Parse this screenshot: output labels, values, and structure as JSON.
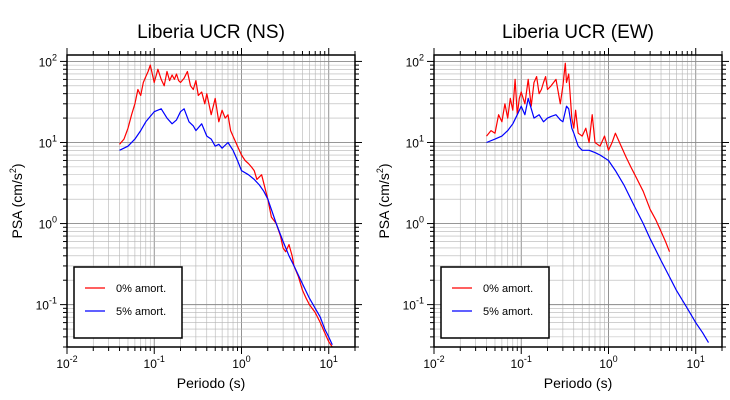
{
  "chart_data": [
    {
      "type": "line",
      "title": "Liberia UCR (NS)",
      "xlabel": "Periodo (s)",
      "ylabel": "PSA (cm/s",
      "ylabel_sup": "2",
      "ylabel_end": ")",
      "xscale": "log",
      "yscale": "log",
      "xlim": [
        0.01,
        20
      ],
      "ylim": [
        0.03,
        120
      ],
      "grid": true,
      "legend_position": "bottom-left",
      "x_ticks": [
        {
          "base": "10",
          "exp": "-2"
        },
        {
          "base": "10",
          "exp": "-1"
        },
        {
          "base": "10",
          "exp": "0"
        },
        {
          "base": "10",
          "exp": "1"
        }
      ],
      "y_ticks": [
        {
          "base": "10",
          "exp": "-1"
        },
        {
          "base": "10",
          "exp": "0"
        },
        {
          "base": "10",
          "exp": "1"
        },
        {
          "base": "10",
          "exp": "2"
        }
      ],
      "series": [
        {
          "name": "0% amort.",
          "color": "#ff0000",
          "x": [
            0.04,
            0.045,
            0.05,
            0.055,
            0.06,
            0.065,
            0.07,
            0.075,
            0.08,
            0.085,
            0.09,
            0.095,
            0.1,
            0.11,
            0.12,
            0.13,
            0.14,
            0.15,
            0.16,
            0.17,
            0.18,
            0.19,
            0.2,
            0.22,
            0.24,
            0.26,
            0.28,
            0.3,
            0.32,
            0.35,
            0.38,
            0.4,
            0.45,
            0.5,
            0.55,
            0.6,
            0.65,
            0.7,
            0.75,
            0.8,
            0.9,
            1.0,
            1.1,
            1.2,
            1.3,
            1.4,
            1.5,
            1.7,
            1.9,
            2.0,
            2.2,
            2.5,
            2.8,
            3.0,
            3.2,
            3.5,
            3.8,
            4.0,
            4.5,
            5.0,
            5.5,
            6.0,
            7.0,
            8.0,
            9.0,
            10.0,
            11.0
          ],
          "y": [
            9.5,
            11,
            15,
            22,
            30,
            45,
            38,
            55,
            65,
            75,
            90,
            70,
            55,
            80,
            60,
            50,
            75,
            58,
            68,
            60,
            70,
            58,
            55,
            62,
            75,
            50,
            45,
            58,
            38,
            42,
            30,
            40,
            22,
            35,
            18,
            25,
            20,
            22,
            14,
            12,
            9,
            7,
            6,
            5.5,
            5,
            4.5,
            3.5,
            4,
            2.5,
            2,
            1.2,
            1.0,
            0.7,
            0.5,
            0.45,
            0.55,
            0.4,
            0.3,
            0.22,
            0.15,
            0.12,
            0.1,
            0.08,
            0.06,
            0.045,
            0.035,
            0.03
          ]
        },
        {
          "name": "5% amort.",
          "color": "#0000ff",
          "x": [
            0.04,
            0.05,
            0.06,
            0.07,
            0.08,
            0.09,
            0.1,
            0.12,
            0.14,
            0.16,
            0.18,
            0.2,
            0.22,
            0.25,
            0.28,
            0.3,
            0.35,
            0.4,
            0.45,
            0.5,
            0.55,
            0.6,
            0.7,
            0.8,
            0.9,
            1.0,
            1.2,
            1.4,
            1.6,
            1.8,
            2.0,
            2.5,
            3.0,
            3.5,
            4.0,
            5.0,
            6.0,
            7.0,
            8.0,
            9.0,
            10.0,
            11.0
          ],
          "y": [
            8,
            9,
            11,
            14,
            18,
            21,
            24,
            26,
            20,
            17,
            19,
            24,
            26,
            18,
            16,
            14,
            17,
            12,
            11,
            9,
            9.5,
            8.5,
            10,
            8,
            6,
            4.5,
            4,
            3.5,
            3,
            2.5,
            2,
            1.0,
            0.6,
            0.4,
            0.3,
            0.18,
            0.12,
            0.09,
            0.07,
            0.05,
            0.04,
            0.032
          ]
        }
      ]
    },
    {
      "type": "line",
      "title": "Liberia UCR (EW)",
      "xlabel": "Periodo (s)",
      "ylabel": "PSA (cm/s",
      "ylabel_sup": "2",
      "ylabel_end": ")",
      "xscale": "log",
      "yscale": "log",
      "xlim": [
        0.01,
        20
      ],
      "ylim": [
        0.03,
        120
      ],
      "grid": true,
      "legend_position": "bottom-left",
      "x_ticks": [
        {
          "base": "10",
          "exp": "-2"
        },
        {
          "base": "10",
          "exp": "-1"
        },
        {
          "base": "10",
          "exp": "0"
        },
        {
          "base": "10",
          "exp": "1"
        }
      ],
      "y_ticks": [
        {
          "base": "10",
          "exp": "-1"
        },
        {
          "base": "10",
          "exp": "0"
        },
        {
          "base": "10",
          "exp": "1"
        },
        {
          "base": "10",
          "exp": "2"
        }
      ],
      "series": [
        {
          "name": "0% amort.",
          "color": "#ff0000",
          "x": [
            0.04,
            0.045,
            0.05,
            0.055,
            0.06,
            0.065,
            0.07,
            0.075,
            0.08,
            0.085,
            0.09,
            0.095,
            0.1,
            0.11,
            0.12,
            0.13,
            0.14,
            0.15,
            0.16,
            0.17,
            0.18,
            0.19,
            0.2,
            0.22,
            0.25,
            0.28,
            0.3,
            0.32,
            0.33,
            0.35,
            0.38,
            0.4,
            0.42,
            0.45,
            0.5,
            0.55,
            0.6,
            0.65,
            0.7,
            0.8,
            0.9,
            1.0,
            1.1,
            1.2,
            1.4,
            1.6,
            1.8,
            2.0,
            2.5,
            3.0,
            3.5,
            4.0,
            4.5,
            5.0
          ],
          "y": [
            12,
            14,
            13,
            22,
            18,
            30,
            20,
            35,
            25,
            60,
            22,
            35,
            42,
            30,
            60,
            28,
            55,
            65,
            40,
            45,
            55,
            65,
            45,
            50,
            60,
            30,
            50,
            95,
            55,
            70,
            20,
            15,
            25,
            13,
            12,
            15,
            10,
            22,
            10,
            9,
            12,
            8,
            10,
            13,
            9,
            6.5,
            5,
            4,
            2.5,
            1.5,
            1.1,
            0.8,
            0.6,
            0.45
          ]
        },
        {
          "name": "5% amort.",
          "color": "#0000ff",
          "x": [
            0.04,
            0.05,
            0.06,
            0.07,
            0.08,
            0.09,
            0.1,
            0.11,
            0.12,
            0.14,
            0.16,
            0.18,
            0.2,
            0.22,
            0.25,
            0.28,
            0.3,
            0.33,
            0.35,
            0.38,
            0.4,
            0.45,
            0.5,
            0.6,
            0.7,
            0.8,
            1.0,
            1.2,
            1.5,
            2.0,
            2.5,
            3.0,
            4.0,
            5.0,
            6.0,
            8.0,
            10.0,
            12.0,
            14.0
          ],
          "y": [
            10,
            11,
            12,
            14,
            17,
            22,
            28,
            22,
            35,
            20,
            22,
            18,
            20,
            21,
            22,
            19,
            18,
            28,
            26,
            15,
            13,
            9,
            8,
            8,
            7.5,
            7,
            6,
            4.5,
            3,
            1.6,
            1.0,
            0.65,
            0.35,
            0.22,
            0.15,
            0.09,
            0.06,
            0.045,
            0.034
          ]
        }
      ]
    }
  ]
}
